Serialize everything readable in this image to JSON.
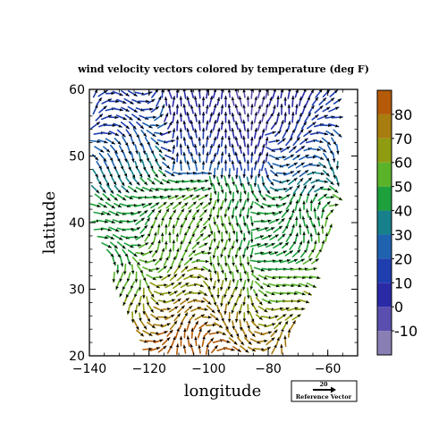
{
  "chart_data": {
    "type": "vector_field",
    "title": "wind velocity vectors colored by temperature (deg F)",
    "xlabel": "longitude",
    "ylabel": "latitude",
    "xlim": [
      -140,
      -50
    ],
    "ylim": [
      20,
      60
    ],
    "xticks": [
      -140,
      -120,
      -100,
      -80,
      -60
    ],
    "xtick_labels": [
      "−140",
      "−120",
      "−100",
      "−80",
      "−60"
    ],
    "yticks": [
      20,
      30,
      40,
      50,
      60
    ],
    "ytick_labels": [
      "20",
      "30",
      "40",
      "50",
      "60"
    ],
    "colorbar": {
      "range": [
        -20,
        90
      ],
      "ticks": [
        -10,
        0,
        10,
        20,
        30,
        40,
        50,
        60,
        70,
        80
      ],
      "tick_labels": [
        "-10",
        "0",
        "10",
        "20",
        "30",
        "40",
        "50",
        "60",
        "70",
        "80"
      ],
      "colors": [
        "#8a7fb5",
        "#5a4fae",
        "#2a2aa6",
        "#1f3fb0",
        "#1f62b0",
        "#17808a",
        "#1ea03c",
        "#5bb32a",
        "#8f9c12",
        "#a87d10",
        "#b45a08"
      ]
    },
    "grid": false,
    "legend": "reference vector box, bottom-right below plot",
    "reference_vector": {
      "label": "20",
      "caption": "Reference Vector"
    },
    "domain": {
      "lat_min_at_lon": [
        [
          -140,
          41
        ],
        [
          -135,
          35
        ],
        [
          -130,
          30
        ],
        [
          -125,
          24
        ],
        [
          -120,
          20
        ],
        [
          -100,
          20
        ],
        [
          -75,
          20
        ],
        [
          -70,
          24
        ],
        [
          -65,
          30
        ],
        [
          -60,
          38
        ],
        [
          -55,
          44
        ],
        [
          -52,
          45
        ]
      ]
    },
    "vectors": {
      "lon_start": -138,
      "lon_end": -56,
      "lon_step": 2.5,
      "lat_start": 21,
      "lat_end": 59.5,
      "lat_step": 1.2
    }
  }
}
